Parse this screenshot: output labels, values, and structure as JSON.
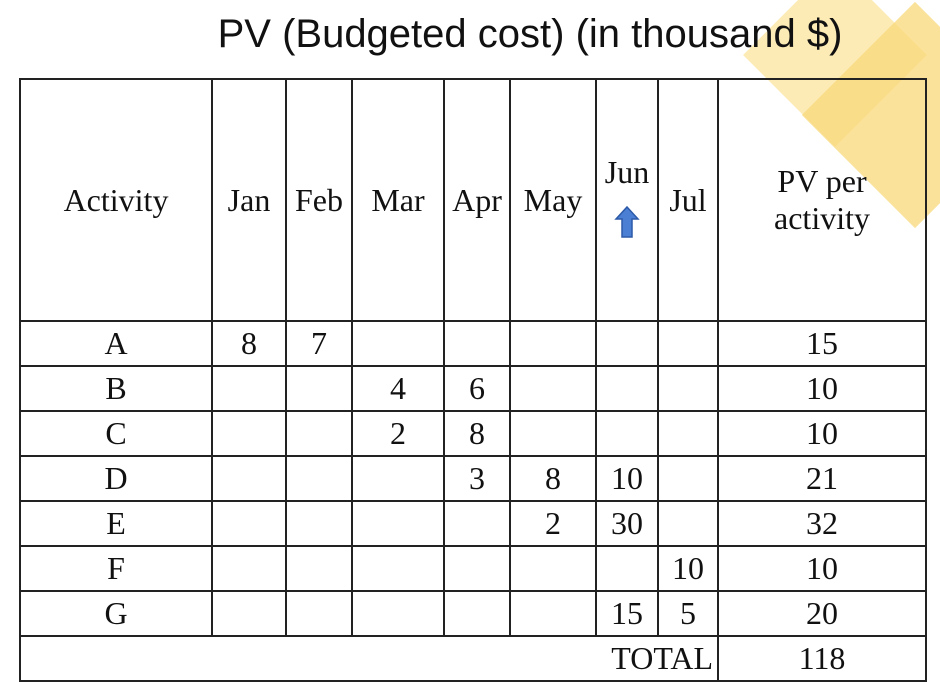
{
  "title": "PV (Budgeted cost) (in thousand $)",
  "headers": {
    "activity": "Activity",
    "months": [
      "Jan",
      "Feb",
      "Mar",
      "Apr",
      "May",
      "Jun",
      "Jul"
    ],
    "pv_line1": "PV per",
    "pv_line2": "activity"
  },
  "arrow_icon": "up-arrow-icon",
  "colors": {
    "arrow": "#4a7fd4",
    "deco_light": "#fbe7a8",
    "deco_dark": "#f9d87a"
  },
  "rows": [
    {
      "activity": "A",
      "cells": [
        "8",
        "7",
        "",
        "",
        "",
        "",
        ""
      ],
      "pv": "15"
    },
    {
      "activity": "B",
      "cells": [
        "",
        "",
        "4",
        "6",
        "",
        "",
        ""
      ],
      "pv": "10"
    },
    {
      "activity": "C",
      "cells": [
        "",
        "",
        "2",
        "8",
        "",
        "",
        ""
      ],
      "pv": "10"
    },
    {
      "activity": "D",
      "cells": [
        "",
        "",
        "",
        "3",
        "8",
        "10",
        ""
      ],
      "pv": "21"
    },
    {
      "activity": "E",
      "cells": [
        "",
        "",
        "",
        "",
        "2",
        "30",
        ""
      ],
      "pv": "32"
    },
    {
      "activity": "F",
      "cells": [
        "",
        "",
        "",
        "",
        "",
        "",
        "10"
      ],
      "pv": "10"
    },
    {
      "activity": "G",
      "cells": [
        "",
        "",
        "",
        "",
        "",
        "15",
        "5"
      ],
      "pv": "20"
    }
  ],
  "total": {
    "label": "TOTAL",
    "value": "118"
  }
}
